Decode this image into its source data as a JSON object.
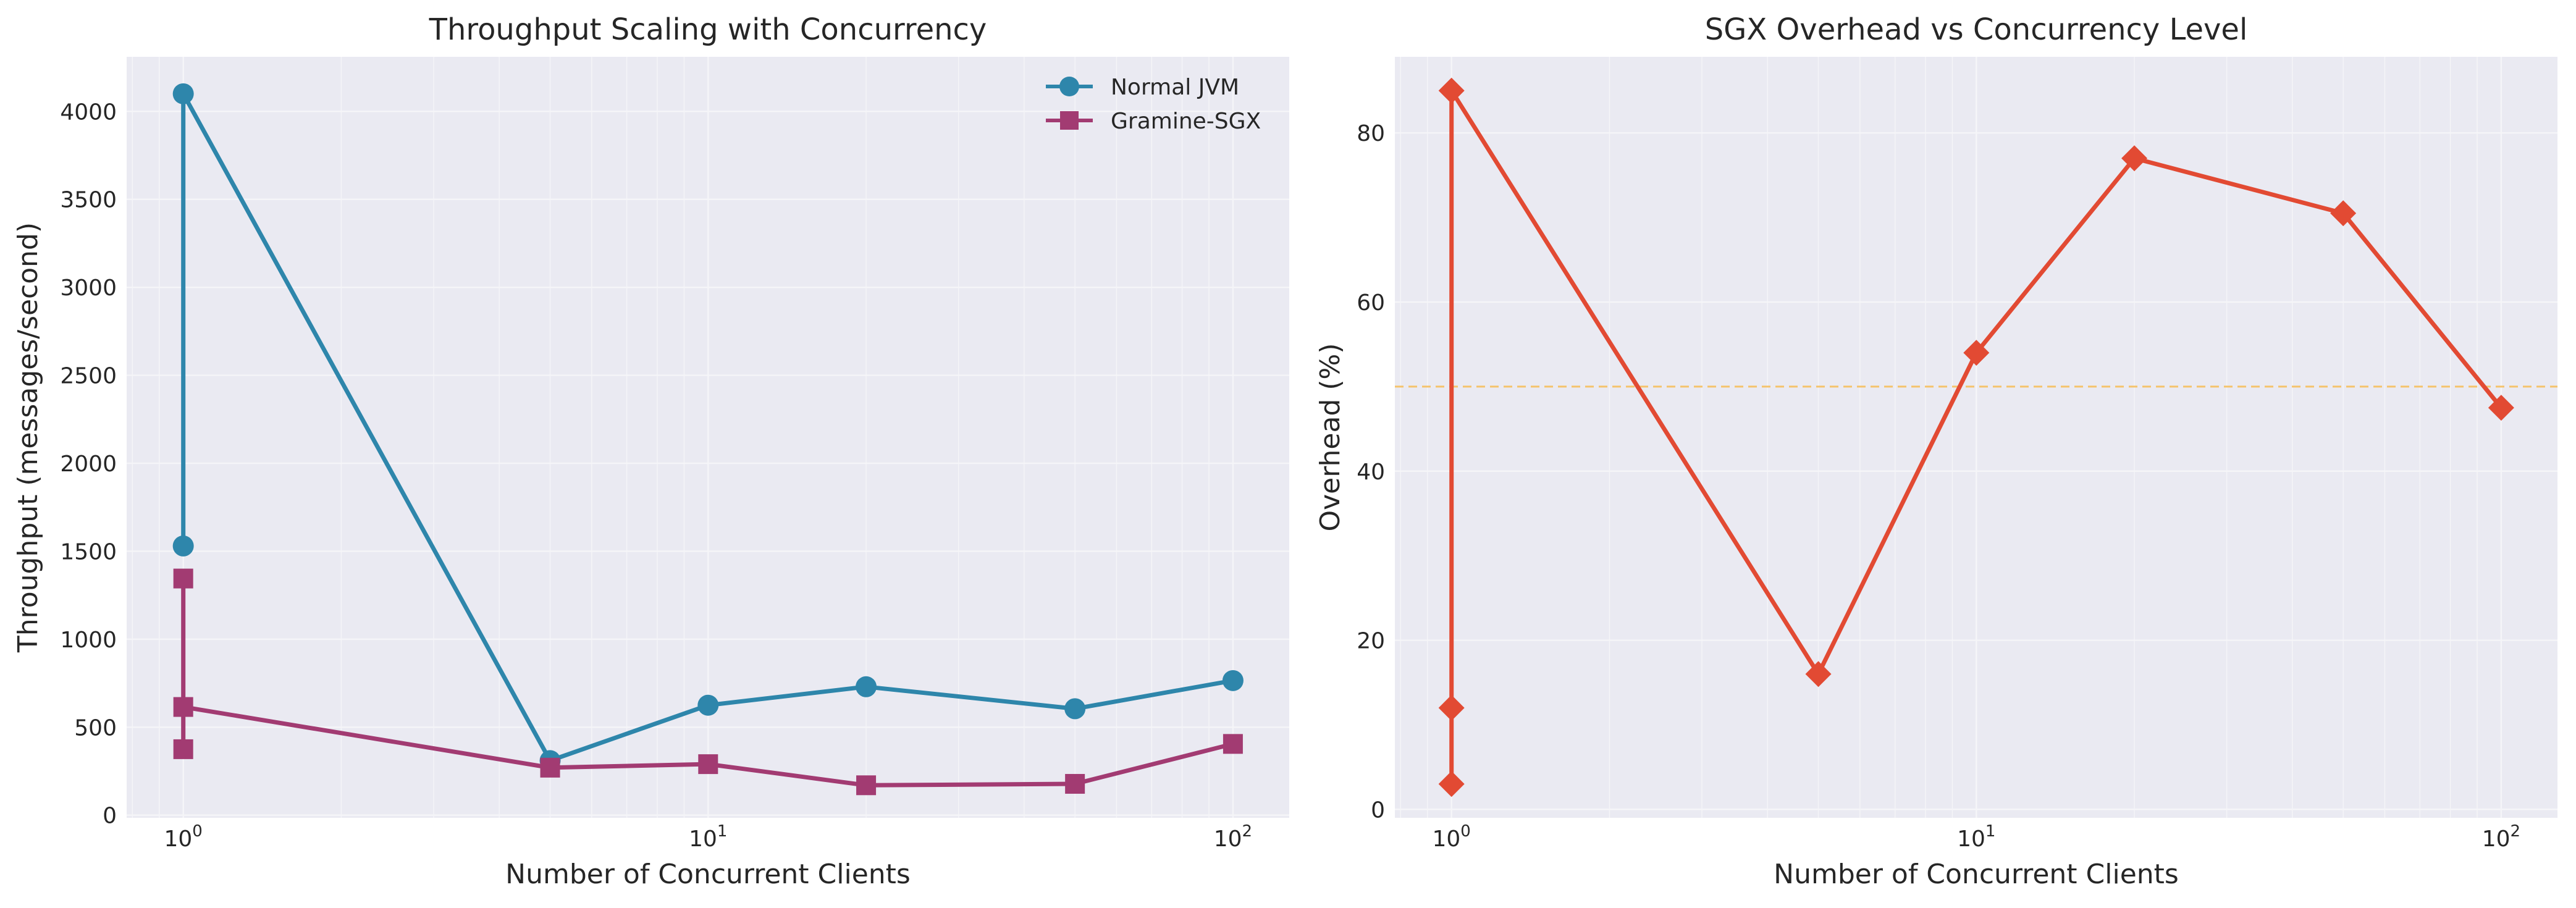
{
  "chart_data": [
    {
      "type": "line",
      "title": "Throughput Scaling with Concurrency",
      "xlabel": "Number of Concurrent Clients",
      "ylabel": "Throughput (messages/second)",
      "xscale": "log",
      "xlim": [
        0.78,
        128
      ],
      "ylim": [
        -15,
        4310
      ],
      "xticks": [
        {
          "value": 1,
          "base": "10",
          "exp": "0"
        },
        {
          "value": 100,
          "base": "10",
          "exp": "2"
        }
      ],
      "x_mid_tick": {
        "value": 10,
        "base": "10",
        "exp": "1"
      },
      "yticks": [
        0,
        500,
        1000,
        1500,
        2000,
        2500,
        3000,
        3500,
        4000
      ],
      "grid": true,
      "legend": "top-right",
      "background": "#eaeaf2",
      "series": [
        {
          "name": "Normal JVM",
          "color": "#2e86ab",
          "marker": "circle",
          "x": [
            1,
            1,
            5,
            10,
            20,
            50,
            100
          ],
          "y": [
            1530,
            4100,
            310,
            625,
            730,
            605,
            765
          ]
        },
        {
          "name": "Gramine-SGX",
          "color": "#a23b72",
          "marker": "square",
          "x": [
            1,
            1,
            1,
            5,
            10,
            20,
            50,
            100
          ],
          "y": [
            375,
            1345,
            615,
            270,
            290,
            170,
            178,
            405
          ]
        }
      ]
    },
    {
      "type": "line",
      "title": "SGX Overhead vs Concurrency Level",
      "xlabel": "Number of Concurrent Clients",
      "ylabel": "Overhead (%)",
      "xscale": "log",
      "xlim": [
        0.78,
        128
      ],
      "ylim": [
        -1,
        89
      ],
      "xticks": [
        {
          "value": 1,
          "base": "10",
          "exp": "0"
        },
        {
          "value": 10,
          "base": "10",
          "exp": "1"
        },
        {
          "value": 100,
          "base": "10",
          "exp": "2"
        }
      ],
      "yticks": [
        0,
        20,
        40,
        60,
        80
      ],
      "grid": true,
      "background": "#eaeaf2",
      "reference_line": {
        "y": 50,
        "color": "#f5c36b",
        "style": "dashed"
      },
      "series": [
        {
          "color": "#e24a33",
          "marker": "diamond",
          "x": [
            1,
            1,
            1,
            5,
            10,
            20,
            50,
            100
          ],
          "y": [
            3,
            12,
            85,
            16,
            54,
            77,
            70.5,
            47.5
          ]
        }
      ]
    }
  ]
}
